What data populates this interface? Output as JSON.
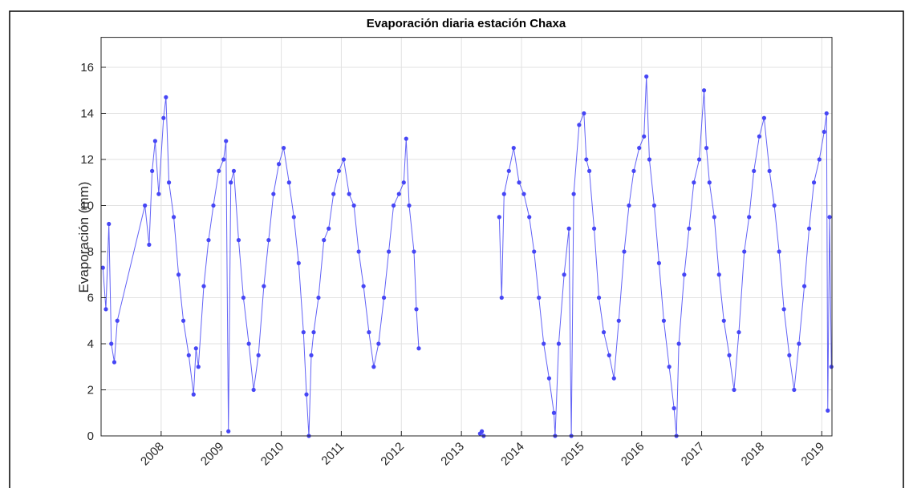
{
  "chart_data": {
    "type": "line",
    "title": "Evaporación diaria estación Chaxa",
    "y_label": "Evaporación (mm)",
    "xlim": [
      2007.0,
      2019.17
    ],
    "xticks": [
      2008,
      2009,
      2010,
      2011,
      2012,
      2013,
      2014,
      2015,
      2016,
      2017,
      2018,
      2019
    ],
    "ylim": [
      0,
      17.3
    ],
    "yticks": [
      0,
      2,
      4,
      6,
      8,
      10,
      12,
      14,
      16
    ],
    "grid": true,
    "series": [
      {
        "name": "Evaporación",
        "color": "#4646f5",
        "x": [
          2007.03,
          2007.08,
          2007.13,
          2007.17,
          2007.22,
          2007.27,
          2007.73,
          2007.8,
          2007.85,
          2007.9,
          2007.96,
          2008.04,
          2008.08,
          2008.13,
          2008.21,
          2008.29,
          2008.37,
          2008.46,
          2008.54,
          2008.58,
          2008.62,
          2008.71,
          2008.79,
          2008.87,
          2008.96,
          2009.04,
          2009.08,
          2009.12,
          2009.16,
          2009.21,
          2009.29,
          2009.37,
          2009.46,
          2009.54,
          2009.62,
          2009.71,
          2009.79,
          2009.87,
          2009.96,
          2010.04,
          2010.13,
          2010.21,
          2010.29,
          2010.37,
          2010.42,
          2010.46,
          2010.5,
          2010.54,
          2010.62,
          2010.71,
          2010.79,
          2010.87,
          2010.96,
          2011.04,
          2011.13,
          2011.21,
          2011.29,
          2011.37,
          2011.46,
          2011.54,
          2011.62,
          2011.71,
          2011.79,
          2011.87,
          2011.96,
          2012.04,
          2012.08,
          2012.13,
          2012.21,
          2012.25,
          2012.29,
          null,
          2013.31,
          2013.34,
          2013.37,
          null,
          2013.63,
          2013.67,
          2013.71,
          2013.79,
          2013.87,
          2013.96,
          2014.04,
          2014.13,
          2014.21,
          2014.29,
          2014.37,
          2014.46,
          2014.54,
          2014.56,
          2014.62,
          2014.71,
          2014.79,
          2014.83,
          2014.87,
          2014.96,
          2015.04,
          2015.08,
          2015.13,
          2015.21,
          2015.29,
          2015.37,
          2015.46,
          2015.54,
          2015.62,
          2015.71,
          2015.79,
          2015.87,
          2015.96,
          2016.04,
          2016.08,
          2016.13,
          2016.21,
          2016.29,
          2016.37,
          2016.46,
          2016.54,
          2016.58,
          2016.62,
          2016.71,
          2016.79,
          2016.87,
          2016.96,
          2017.04,
          2017.08,
          2017.13,
          2017.21,
          2017.29,
          2017.37,
          2017.46,
          2017.54,
          2017.62,
          2017.71,
          2017.79,
          2017.87,
          2017.96,
          2018.04,
          2018.13,
          2018.21,
          2018.29,
          2018.37,
          2018.46,
          2018.54,
          2018.62,
          2018.71,
          2018.79,
          2018.87,
          2018.96,
          2019.04,
          2019.08,
          2019.1,
          2019.13,
          2019.16
        ],
        "values": [
          7.3,
          5.5,
          9.2,
          4.0,
          3.2,
          5.0,
          10.0,
          8.3,
          11.5,
          12.8,
          10.5,
          13.8,
          14.7,
          11.0,
          9.5,
          7.0,
          5.0,
          3.5,
          1.8,
          3.8,
          3.0,
          6.5,
          8.5,
          10.0,
          11.5,
          12.0,
          12.8,
          0.2,
          11.0,
          11.5,
          8.5,
          6.0,
          4.0,
          2.0,
          3.5,
          6.5,
          8.5,
          10.5,
          11.8,
          12.5,
          11.0,
          9.5,
          7.5,
          4.5,
          1.8,
          0.0,
          3.5,
          4.5,
          6.0,
          8.5,
          9.0,
          10.5,
          11.5,
          12.0,
          10.5,
          10.0,
          8.0,
          6.5,
          4.5,
          3.0,
          4.0,
          6.0,
          8.0,
          10.0,
          10.5,
          11.0,
          12.9,
          10.0,
          8.0,
          5.5,
          3.8,
          null,
          0.1,
          0.2,
          0.0,
          null,
          9.5,
          6.0,
          10.5,
          11.5,
          12.5,
          11.0,
          10.5,
          9.5,
          8.0,
          6.0,
          4.0,
          2.5,
          1.0,
          0.0,
          4.0,
          7.0,
          9.0,
          0.0,
          10.5,
          13.5,
          14.0,
          12.0,
          11.5,
          9.0,
          6.0,
          4.5,
          3.5,
          2.5,
          5.0,
          8.0,
          10.0,
          11.5,
          12.5,
          13.0,
          15.6,
          12.0,
          10.0,
          7.5,
          5.0,
          3.0,
          1.2,
          0.0,
          4.0,
          7.0,
          9.0,
          11.0,
          12.0,
          15.0,
          12.5,
          11.0,
          9.5,
          7.0,
          5.0,
          3.5,
          2.0,
          4.5,
          8.0,
          9.5,
          11.5,
          13.0,
          13.8,
          11.5,
          10.0,
          8.0,
          5.5,
          3.5,
          2.0,
          4.0,
          6.5,
          9.0,
          11.0,
          12.0,
          13.2,
          14.0,
          1.1,
          9.5,
          3.0
        ]
      }
    ]
  }
}
